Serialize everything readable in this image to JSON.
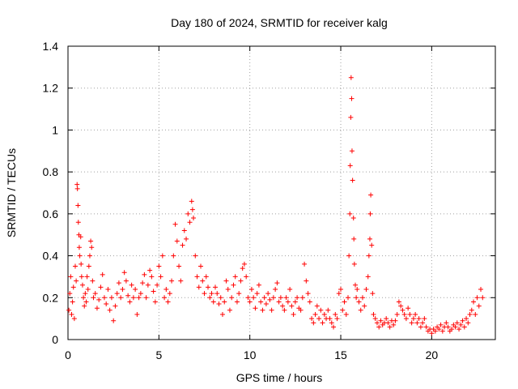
{
  "chart_data": {
    "type": "scatter",
    "title": "Day 180 of 2024, SRMTID for receiver kalg",
    "xlabel": "GPS time / hours",
    "ylabel": "SRMTID / TECUs",
    "xlim": [
      0,
      23.5
    ],
    "ylim": [
      0,
      1.4
    ],
    "x_ticks": [
      0,
      5,
      10,
      15,
      20
    ],
    "x_tick_labels": [
      "0",
      "5",
      "10",
      "15",
      "20"
    ],
    "y_ticks": [
      0,
      0.2,
      0.4,
      0.6,
      0.8,
      1.0,
      1.2,
      1.4
    ],
    "y_tick_labels": [
      "0",
      "0.2",
      "0.4",
      "0.6",
      "0.8",
      "1",
      "1.2",
      "1.4"
    ],
    "grid": true,
    "marker": "+",
    "color": "#ff0000",
    "series": [
      {
        "name": "SRMTID",
        "points": [
          [
            0.05,
            0.14
          ],
          [
            0.1,
            0.22
          ],
          [
            0.15,
            0.3
          ],
          [
            0.2,
            0.12
          ],
          [
            0.25,
            0.18
          ],
          [
            0.3,
            0.25
          ],
          [
            0.35,
            0.1
          ],
          [
            0.4,
            0.35
          ],
          [
            0.45,
            0.28
          ],
          [
            0.5,
            0.74
          ],
          [
            0.52,
            0.72
          ],
          [
            0.55,
            0.64
          ],
          [
            0.57,
            0.56
          ],
          [
            0.6,
            0.5
          ],
          [
            0.62,
            0.44
          ],
          [
            0.65,
            0.4
          ],
          [
            0.7,
            0.49
          ],
          [
            0.72,
            0.36
          ],
          [
            0.75,
            0.3
          ],
          [
            0.8,
            0.26
          ],
          [
            0.85,
            0.2
          ],
          [
            0.9,
            0.16
          ],
          [
            0.95,
            0.22
          ],
          [
            1.0,
            0.18
          ],
          [
            1.05,
            0.3
          ],
          [
            1.1,
            0.24
          ],
          [
            1.15,
            0.35
          ],
          [
            1.2,
            0.4
          ],
          [
            1.25,
            0.47
          ],
          [
            1.3,
            0.44
          ],
          [
            1.35,
            0.28
          ],
          [
            1.4,
            0.2
          ],
          [
            1.5,
            0.22
          ],
          [
            1.6,
            0.15
          ],
          [
            1.7,
            0.19
          ],
          [
            1.8,
            0.25
          ],
          [
            1.9,
            0.31
          ],
          [
            2.0,
            0.2
          ],
          [
            2.1,
            0.17
          ],
          [
            2.2,
            0.24
          ],
          [
            2.3,
            0.14
          ],
          [
            2.4,
            0.2
          ],
          [
            2.5,
            0.09
          ],
          [
            2.6,
            0.16
          ],
          [
            2.7,
            0.22
          ],
          [
            2.8,
            0.27
          ],
          [
            2.9,
            0.2
          ],
          [
            3.0,
            0.24
          ],
          [
            3.1,
            0.32
          ],
          [
            3.2,
            0.28
          ],
          [
            3.3,
            0.21
          ],
          [
            3.4,
            0.18
          ],
          [
            3.5,
            0.26
          ],
          [
            3.6,
            0.2
          ],
          [
            3.7,
            0.24
          ],
          [
            3.8,
            0.12
          ],
          [
            3.9,
            0.2
          ],
          [
            4.0,
            0.22
          ],
          [
            4.1,
            0.27
          ],
          [
            4.2,
            0.31
          ],
          [
            4.3,
            0.2
          ],
          [
            4.4,
            0.26
          ],
          [
            4.5,
            0.33
          ],
          [
            4.6,
            0.3
          ],
          [
            4.7,
            0.23
          ],
          [
            4.8,
            0.18
          ],
          [
            4.9,
            0.26
          ],
          [
            5.0,
            0.35
          ],
          [
            5.1,
            0.3
          ],
          [
            5.2,
            0.4
          ],
          [
            5.3,
            0.2
          ],
          [
            5.4,
            0.24
          ],
          [
            5.5,
            0.18
          ],
          [
            5.6,
            0.22
          ],
          [
            5.7,
            0.28
          ],
          [
            5.8,
            0.4
          ],
          [
            5.9,
            0.55
          ],
          [
            6.0,
            0.47
          ],
          [
            6.1,
            0.35
          ],
          [
            6.2,
            0.28
          ],
          [
            6.3,
            0.45
          ],
          [
            6.4,
            0.52
          ],
          [
            6.5,
            0.48
          ],
          [
            6.6,
            0.6
          ],
          [
            6.7,
            0.56
          ],
          [
            6.8,
            0.66
          ],
          [
            6.85,
            0.62
          ],
          [
            6.9,
            0.58
          ],
          [
            7.0,
            0.4
          ],
          [
            7.1,
            0.3
          ],
          [
            7.2,
            0.25
          ],
          [
            7.3,
            0.35
          ],
          [
            7.4,
            0.28
          ],
          [
            7.5,
            0.22
          ],
          [
            7.6,
            0.3
          ],
          [
            7.7,
            0.25
          ],
          [
            7.8,
            0.2
          ],
          [
            7.9,
            0.22
          ],
          [
            8.0,
            0.18
          ],
          [
            8.1,
            0.25
          ],
          [
            8.2,
            0.22
          ],
          [
            8.3,
            0.17
          ],
          [
            8.4,
            0.2
          ],
          [
            8.5,
            0.12
          ],
          [
            8.6,
            0.18
          ],
          [
            8.7,
            0.28
          ],
          [
            8.8,
            0.24
          ],
          [
            8.9,
            0.14
          ],
          [
            9.0,
            0.2
          ],
          [
            9.1,
            0.26
          ],
          [
            9.2,
            0.3
          ],
          [
            9.3,
            0.18
          ],
          [
            9.4,
            0.22
          ],
          [
            9.5,
            0.28
          ],
          [
            9.6,
            0.34
          ],
          [
            9.7,
            0.36
          ],
          [
            9.8,
            0.3
          ],
          [
            9.9,
            0.2
          ],
          [
            10.0,
            0.18
          ],
          [
            10.1,
            0.24
          ],
          [
            10.2,
            0.2
          ],
          [
            10.3,
            0.15
          ],
          [
            10.4,
            0.22
          ],
          [
            10.5,
            0.26
          ],
          [
            10.6,
            0.18
          ],
          [
            10.7,
            0.14
          ],
          [
            10.8,
            0.2
          ],
          [
            10.9,
            0.17
          ],
          [
            11.0,
            0.22
          ],
          [
            11.1,
            0.19
          ],
          [
            11.2,
            0.14
          ],
          [
            11.3,
            0.2
          ],
          [
            11.4,
            0.24
          ],
          [
            11.5,
            0.27
          ],
          [
            11.6,
            0.18
          ],
          [
            11.7,
            0.2
          ],
          [
            11.8,
            0.16
          ],
          [
            11.9,
            0.14
          ],
          [
            12.0,
            0.2
          ],
          [
            12.1,
            0.18
          ],
          [
            12.2,
            0.24
          ],
          [
            12.3,
            0.16
          ],
          [
            12.4,
            0.12
          ],
          [
            12.5,
            0.18
          ],
          [
            12.6,
            0.2
          ],
          [
            12.7,
            0.15
          ],
          [
            12.8,
            0.14
          ],
          [
            12.9,
            0.2
          ],
          [
            13.0,
            0.36
          ],
          [
            13.1,
            0.28
          ],
          [
            13.2,
            0.22
          ],
          [
            13.3,
            0.18
          ],
          [
            13.4,
            0.1
          ],
          [
            13.5,
            0.08
          ],
          [
            13.6,
            0.12
          ],
          [
            13.7,
            0.16
          ],
          [
            13.8,
            0.1
          ],
          [
            13.9,
            0.14
          ],
          [
            14.0,
            0.08
          ],
          [
            14.1,
            0.12
          ],
          [
            14.2,
            0.1
          ],
          [
            14.3,
            0.14
          ],
          [
            14.4,
            0.1
          ],
          [
            14.5,
            0.08
          ],
          [
            14.6,
            0.06
          ],
          [
            14.7,
            0.12
          ],
          [
            14.8,
            0.1
          ],
          [
            14.9,
            0.22
          ],
          [
            15.0,
            0.24
          ],
          [
            15.1,
            0.14
          ],
          [
            15.2,
            0.18
          ],
          [
            15.3,
            0.12
          ],
          [
            15.4,
            0.2
          ],
          [
            15.45,
            0.4
          ],
          [
            15.5,
            0.6
          ],
          [
            15.52,
            0.83
          ],
          [
            15.55,
            1.06
          ],
          [
            15.57,
            1.25
          ],
          [
            15.6,
            1.15
          ],
          [
            15.62,
            0.9
          ],
          [
            15.65,
            0.76
          ],
          [
            15.7,
            0.58
          ],
          [
            15.72,
            0.48
          ],
          [
            15.75,
            0.36
          ],
          [
            15.8,
            0.26
          ],
          [
            15.85,
            0.2
          ],
          [
            15.9,
            0.24
          ],
          [
            16.0,
            0.18
          ],
          [
            16.1,
            0.14
          ],
          [
            16.2,
            0.2
          ],
          [
            16.3,
            0.16
          ],
          [
            16.4,
            0.24
          ],
          [
            16.5,
            0.3
          ],
          [
            16.55,
            0.4
          ],
          [
            16.6,
            0.48
          ],
          [
            16.62,
            0.6
          ],
          [
            16.65,
            0.69
          ],
          [
            16.7,
            0.45
          ],
          [
            16.75,
            0.22
          ],
          [
            16.8,
            0.12
          ],
          [
            16.9,
            0.1
          ],
          [
            17.0,
            0.08
          ],
          [
            17.1,
            0.06
          ],
          [
            17.2,
            0.09
          ],
          [
            17.3,
            0.07
          ],
          [
            17.4,
            0.08
          ],
          [
            17.5,
            0.1
          ],
          [
            17.6,
            0.08
          ],
          [
            17.7,
            0.06
          ],
          [
            17.8,
            0.09
          ],
          [
            17.9,
            0.07
          ],
          [
            18.0,
            0.09
          ],
          [
            18.1,
            0.12
          ],
          [
            18.2,
            0.18
          ],
          [
            18.3,
            0.16
          ],
          [
            18.4,
            0.14
          ],
          [
            18.5,
            0.12
          ],
          [
            18.6,
            0.1
          ],
          [
            18.7,
            0.15
          ],
          [
            18.8,
            0.12
          ],
          [
            18.9,
            0.08
          ],
          [
            19.0,
            0.1
          ],
          [
            19.1,
            0.12
          ],
          [
            19.2,
            0.08
          ],
          [
            19.3,
            0.1
          ],
          [
            19.4,
            0.06
          ],
          [
            19.5,
            0.08
          ],
          [
            19.6,
            0.1
          ],
          [
            19.7,
            0.06
          ],
          [
            19.8,
            0.04
          ],
          [
            19.9,
            0.05
          ],
          [
            20.0,
            0.03
          ],
          [
            20.1,
            0.05
          ],
          [
            20.2,
            0.04
          ],
          [
            20.3,
            0.06
          ],
          [
            20.4,
            0.05
          ],
          [
            20.5,
            0.07
          ],
          [
            20.6,
            0.04
          ],
          [
            20.7,
            0.06
          ],
          [
            20.8,
            0.08
          ],
          [
            20.9,
            0.06
          ],
          [
            21.0,
            0.04
          ],
          [
            21.1,
            0.05
          ],
          [
            21.2,
            0.07
          ],
          [
            21.3,
            0.06
          ],
          [
            21.4,
            0.08
          ],
          [
            21.5,
            0.05
          ],
          [
            21.6,
            0.07
          ],
          [
            21.7,
            0.09
          ],
          [
            21.8,
            0.06
          ],
          [
            21.9,
            0.1
          ],
          [
            22.0,
            0.08
          ],
          [
            22.1,
            0.12
          ],
          [
            22.2,
            0.14
          ],
          [
            22.3,
            0.18
          ],
          [
            22.4,
            0.12
          ],
          [
            22.5,
            0.2
          ],
          [
            22.6,
            0.16
          ],
          [
            22.7,
            0.24
          ],
          [
            22.8,
            0.2
          ]
        ]
      }
    ]
  }
}
